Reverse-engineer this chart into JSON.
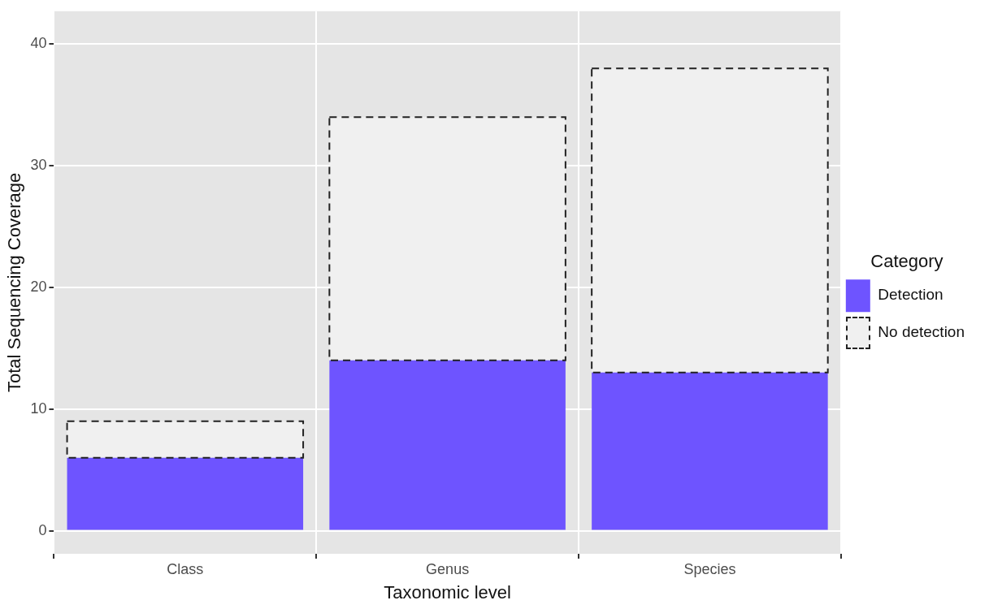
{
  "chart_data": {
    "type": "bar",
    "xlabel": "Taxonomic level",
    "ylabel": "Total Sequencing Coverage",
    "legend_title": "Category",
    "categories": [
      "Class",
      "Genus",
      "Species"
    ],
    "stacked": true,
    "series": [
      {
        "name": "Detection",
        "color": "#6e54ff",
        "values": [
          6,
          14,
          13
        ]
      },
      {
        "name": "No detection",
        "color": "#f0f0f0",
        "line_style": "dashed",
        "values": [
          3,
          20,
          25
        ]
      }
    ],
    "ylim": [
      -1.9,
      42.7
    ],
    "yticks": [
      0,
      10,
      20,
      30,
      40
    ],
    "grid": true,
    "legend": "right"
  }
}
